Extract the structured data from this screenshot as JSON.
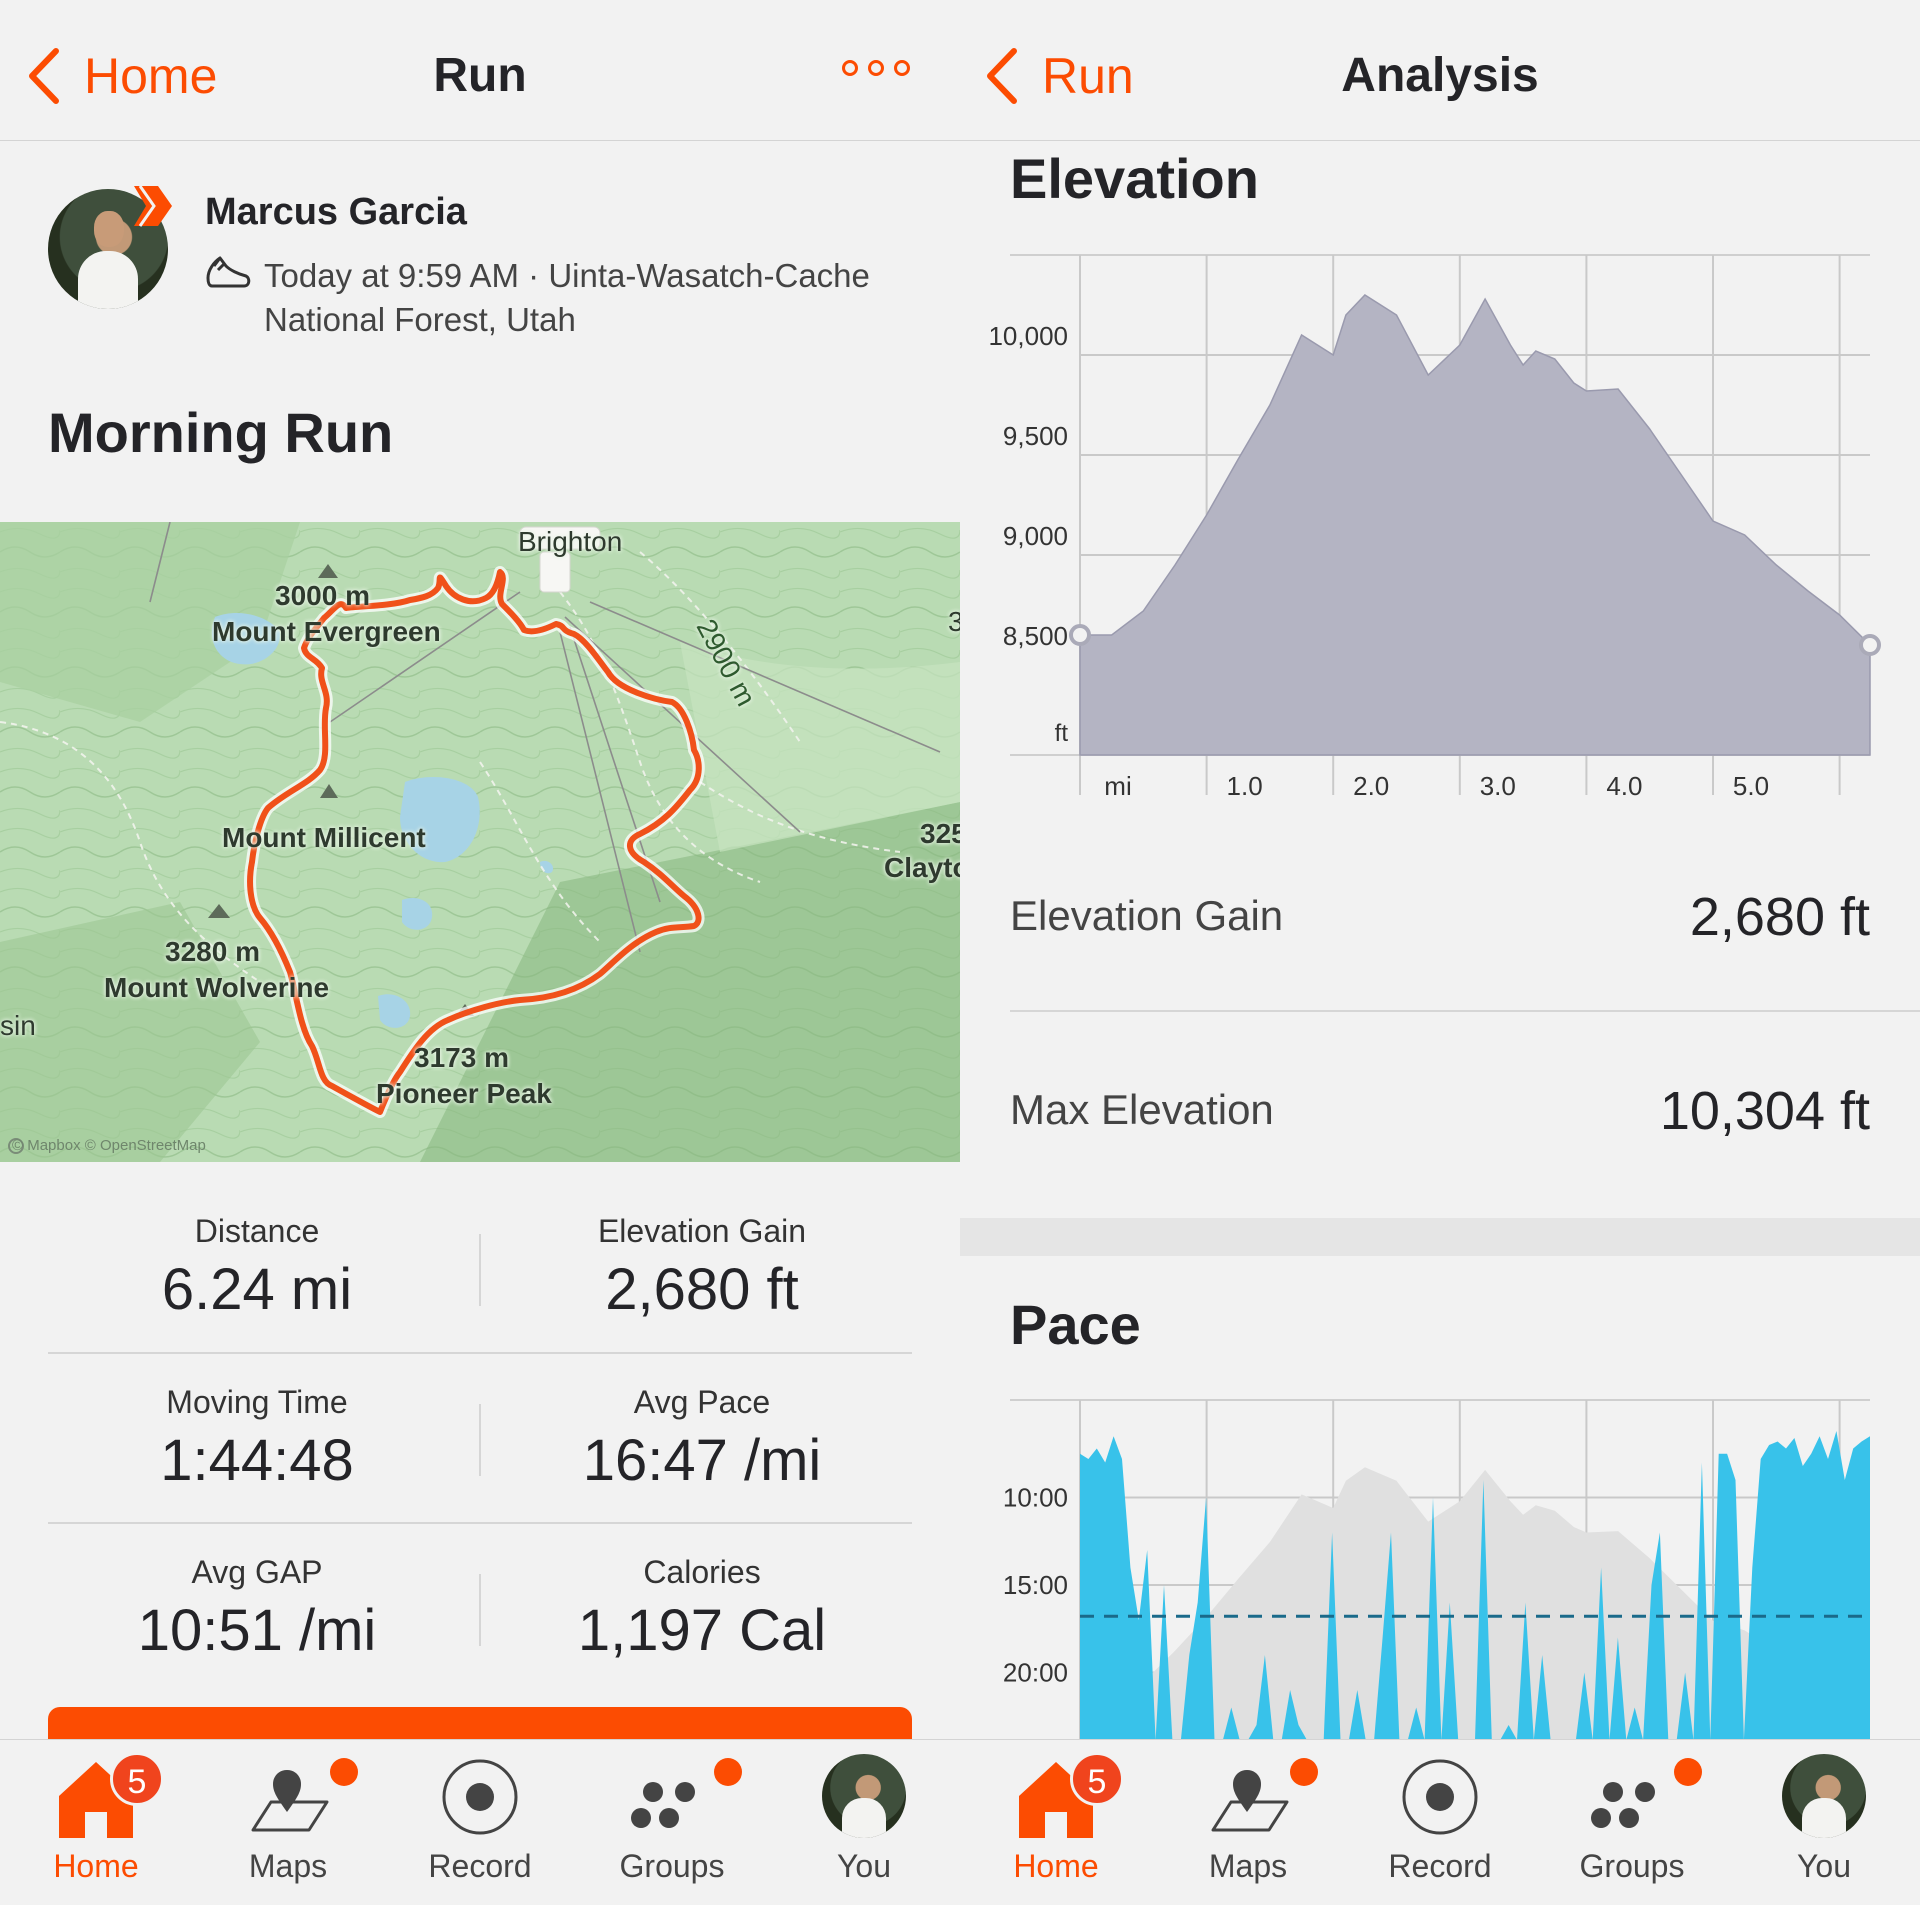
{
  "left": {
    "nav": {
      "back_label": "Home",
      "title": "Run"
    },
    "athlete": {
      "name": "Marcus Garcia",
      "meta_line1": "Today at 9:59 AM · Uinta-Wasatch-Cache",
      "meta_line2": "National Forest, Utah"
    },
    "activity_title": "Morning Run",
    "map": {
      "labels": [
        "Brighton",
        "3000 m",
        "Mount Evergreen",
        "2900 m",
        "Mount Millicent",
        "3280 m",
        "Mount Wolverine",
        "3173 m",
        "Pioneer Peak",
        "325",
        "Clayto",
        "sin",
        "3"
      ],
      "attribution": "© Mapbox © OpenStreetMap",
      "route_color": "#f0511a"
    },
    "stats": [
      {
        "label": "Distance",
        "value": "6.24 mi"
      },
      {
        "label": "Elevation Gain",
        "value": "2,680 ft"
      },
      {
        "label": "Moving Time",
        "value": "1:44:48"
      },
      {
        "label": "Avg Pace",
        "value": "16:47 /mi"
      },
      {
        "label": "Avg GAP",
        "value": "10:51 /mi"
      },
      {
        "label": "Calories",
        "value": "1,197 Cal"
      }
    ]
  },
  "right": {
    "nav": {
      "back_label": "Run",
      "title": "Analysis"
    },
    "elevation": {
      "title": "Elevation",
      "gain_label": "Elevation Gain",
      "gain_value": "2,680 ft",
      "max_label": "Max Elevation",
      "max_value": "10,304 ft"
    },
    "pace": {
      "title": "Pace"
    }
  },
  "tabbar": {
    "items": [
      {
        "label": "Home",
        "icon": "home-icon",
        "badge": "5"
      },
      {
        "label": "Maps",
        "icon": "maps-icon"
      },
      {
        "label": "Record",
        "icon": "record-icon"
      },
      {
        "label": "Groups",
        "icon": "groups-icon"
      },
      {
        "label": "You",
        "icon": "avatar"
      }
    ]
  },
  "colors": {
    "accent": "#fc4c02",
    "elevation_fill": "#b4b4c3",
    "pace_fill": "#38c2ea",
    "avg_pace_line": "#1a6a8a"
  },
  "chart_data": [
    {
      "type": "area",
      "title": "Elevation",
      "xlabel": "mi",
      "ylabel": "ft",
      "x_ticks": [
        "1.0",
        "2.0",
        "3.0",
        "4.0",
        "5.0"
      ],
      "y_ticks": [
        "8,500",
        "9,000",
        "9,500",
        "10,000"
      ],
      "xlim": [
        0,
        6.24
      ],
      "ylim": [
        8000,
        10500
      ],
      "x": [
        0,
        0.25,
        0.5,
        0.75,
        1.0,
        1.25,
        1.5,
        1.75,
        2.0,
        2.1,
        2.25,
        2.5,
        2.75,
        3.0,
        3.2,
        3.4,
        3.5,
        3.6,
        3.75,
        3.9,
        4.0,
        4.25,
        4.5,
        4.75,
        5.0,
        5.25,
        5.5,
        5.75,
        6.0,
        6.24
      ],
      "y": [
        8600,
        8600,
        8720,
        8950,
        9200,
        9480,
        9750,
        10100,
        10000,
        10200,
        10300,
        10200,
        9900,
        10050,
        10280,
        10050,
        9950,
        10020,
        9980,
        9860,
        9820,
        9830,
        9630,
        9400,
        9170,
        9100,
        8950,
        8820,
        8700,
        8550
      ]
    },
    {
      "type": "area",
      "title": "Pace",
      "y_ticks": [
        "10:00",
        "15:00",
        "20:00"
      ],
      "avg_pace": "16:47",
      "note": "blue pace series per ~0.1 mi with gray elevation backdrop"
    }
  ]
}
